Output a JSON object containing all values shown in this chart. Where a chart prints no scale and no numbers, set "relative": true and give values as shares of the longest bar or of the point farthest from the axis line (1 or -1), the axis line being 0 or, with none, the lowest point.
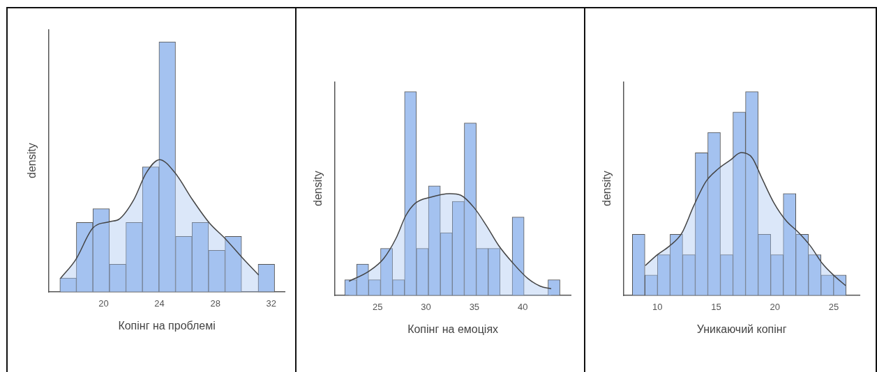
{
  "chart_data": [
    {
      "type": "histogram",
      "relative": true,
      "xlabel": "Копінг на проблемі",
      "ylabel": "density",
      "color": "#a4c2f0",
      "bins": [
        16.87,
        18.05,
        19.23,
        20.42,
        21.6,
        22.78,
        23.96,
        25.15,
        26.33,
        27.51,
        28.69,
        29.88,
        31.06,
        32.24
      ],
      "values": [
        0.056,
        0.278,
        0.333,
        0.111,
        0.278,
        0.5,
        1,
        0.222,
        0.278,
        0.167,
        0.222,
        0,
        0.111
      ],
      "xlim": [
        16.09,
        32.96
      ],
      "xticks": [
        20,
        24,
        28,
        32
      ],
      "series": [
        {
          "type": "area",
          "color": "#dbe5f6",
          "x": [
            16.92,
            18.0,
            19.22,
            20.43,
            21.13,
            22.17,
            23.04,
            24.0,
            25.13,
            26.35,
            27.57,
            28.71,
            29.88,
            31.1
          ],
          "values": [
            0.055,
            0.129,
            0.255,
            0.281,
            0.292,
            0.37,
            0.475,
            0.529,
            0.475,
            0.37,
            0.276,
            0.213,
            0.14,
            0.068
          ]
        }
      ]
    },
    {
      "type": "histogram",
      "relative": true,
      "xlabel": "Копінг на емоціях",
      "ylabel": "density",
      "color": "#a4c2f0",
      "bins": [
        21.59,
        22.83,
        24.06,
        25.3,
        26.54,
        27.78,
        29.01,
        30.25,
        31.49,
        32.72,
        33.96,
        35.2,
        36.43,
        37.67,
        38.91,
        40.15,
        41.38,
        42.62,
        43.86
      ],
      "values": [
        0.077,
        0.154,
        0.077,
        0.231,
        0.077,
        1,
        0.231,
        0.538,
        0.308,
        0.462,
        0.846,
        0.231,
        0.231,
        0,
        0.385,
        0,
        0,
        0.077
      ],
      "xlim": [
        20.59,
        44.97
      ],
      "xticks": [
        25,
        30,
        35,
        40
      ],
      "series": [
        {
          "type": "area",
          "color": "#dbe5f6",
          "x": [
            22.04,
            24.12,
            25.63,
            26.9,
            27.91,
            28.92,
            30.44,
            32.46,
            33.6,
            34.99,
            36.25,
            37.52,
            39.03,
            40.55,
            41.81,
            42.95
          ],
          "values": [
            0.07,
            0.12,
            0.182,
            0.281,
            0.392,
            0.454,
            0.482,
            0.5,
            0.492,
            0.43,
            0.343,
            0.245,
            0.157,
            0.083,
            0.046,
            0.033
          ]
        }
      ]
    },
    {
      "type": "histogram",
      "relative": true,
      "xlabel": "Уникаючий копінг",
      "ylabel": "density",
      "color": "#a4c2f0",
      "bins": [
        7.87,
        8.94,
        10.01,
        11.08,
        12.15,
        13.22,
        14.29,
        15.36,
        16.43,
        17.5,
        18.57,
        19.64,
        20.71,
        21.78,
        22.85,
        23.92,
        24.99,
        26.06
      ],
      "values": [
        0.3,
        0.1,
        0.2,
        0.3,
        0.2,
        0.7,
        0.8,
        0.2,
        0.9,
        1,
        0.3,
        0.2,
        0.5,
        0.3,
        0.2,
        0.1,
        0.1
      ],
      "xlim": [
        7.15,
        27.2
      ],
      "xticks": [
        10,
        15,
        20,
        25
      ],
      "series": [
        {
          "type": "area",
          "color": "#dbe5f6",
          "x": [
            8.97,
            10.0,
            11.03,
            12.07,
            13.1,
            14.13,
            15.17,
            16.2,
            17.13,
            18.06,
            18.88,
            19.92,
            20.95,
            21.98,
            23.02,
            24.05,
            25.08,
            26.01
          ],
          "values": [
            0.147,
            0.2,
            0.243,
            0.305,
            0.441,
            0.559,
            0.621,
            0.664,
            0.701,
            0.676,
            0.577,
            0.454,
            0.367,
            0.311,
            0.243,
            0.156,
            0.095,
            0.049
          ]
        }
      ]
    }
  ]
}
